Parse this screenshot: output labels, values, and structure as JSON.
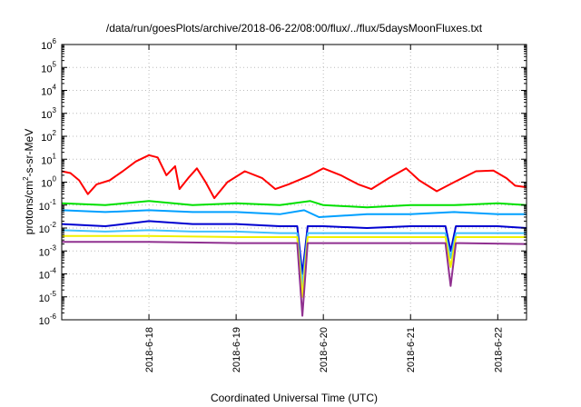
{
  "chart_data": {
    "type": "line",
    "title": "/data/run/goesPlots/archive/2018-06-22/08:00/flux/../flux/5daysMoonFluxes.txt",
    "xlabel": "Coordinated Universal Time (UTC)",
    "ylabel": {
      "pre": "protons/cm",
      "sup": "2",
      "post": "-s-sr-MeV"
    },
    "yscale": "log",
    "ylim_exponents": [
      -6,
      6
    ],
    "y_tick_exponents": [
      -6,
      -5,
      -4,
      -3,
      -2,
      -1,
      0,
      1,
      2,
      3,
      4,
      5,
      6
    ],
    "y_tick_base": "10",
    "xlim_days": [
      0,
      5.33
    ],
    "x_ticks": [
      {
        "label": "2018-6-18",
        "day": 1
      },
      {
        "label": "2018-6-19",
        "day": 2
      },
      {
        "label": "2018-6-20",
        "day": 3
      },
      {
        "label": "2018-6-21",
        "day": 4
      },
      {
        "label": "2018-6-22",
        "day": 5
      }
    ],
    "grid": true,
    "series": [
      {
        "color": "#ff0000",
        "points": [
          [
            0,
            3
          ],
          [
            0.1,
            2.5
          ],
          [
            0.2,
            1.2
          ],
          [
            0.3,
            0.3
          ],
          [
            0.4,
            0.8
          ],
          [
            0.55,
            1.2
          ],
          [
            0.7,
            3
          ],
          [
            0.85,
            8
          ],
          [
            1.0,
            15
          ],
          [
            1.1,
            12
          ],
          [
            1.2,
            2
          ],
          [
            1.3,
            5
          ],
          [
            1.35,
            0.5
          ],
          [
            1.45,
            1.5
          ],
          [
            1.55,
            4
          ],
          [
            1.65,
            1.0
          ],
          [
            1.75,
            0.2
          ],
          [
            1.9,
            1.0
          ],
          [
            2.1,
            3
          ],
          [
            2.3,
            1.5
          ],
          [
            2.45,
            0.5
          ],
          [
            2.6,
            0.8
          ],
          [
            2.85,
            2
          ],
          [
            3.0,
            4
          ],
          [
            3.2,
            2
          ],
          [
            3.4,
            0.8
          ],
          [
            3.55,
            0.5
          ],
          [
            3.75,
            1.5
          ],
          [
            3.95,
            4
          ],
          [
            4.1,
            1.2
          ],
          [
            4.3,
            0.4
          ],
          [
            4.5,
            1.0
          ],
          [
            4.75,
            3
          ],
          [
            4.95,
            3.2
          ],
          [
            5.1,
            1.5
          ],
          [
            5.2,
            0.7
          ],
          [
            5.33,
            0.6
          ]
        ]
      },
      {
        "color": "#00e000",
        "points": [
          [
            0,
            0.12
          ],
          [
            0.5,
            0.1
          ],
          [
            1.0,
            0.15
          ],
          [
            1.5,
            0.1
          ],
          [
            2.0,
            0.12
          ],
          [
            2.5,
            0.1
          ],
          [
            2.85,
            0.15
          ],
          [
            3.0,
            0.1
          ],
          [
            3.5,
            0.08
          ],
          [
            4.0,
            0.1
          ],
          [
            4.5,
            0.1
          ],
          [
            5.0,
            0.12
          ],
          [
            5.33,
            0.1
          ]
        ]
      },
      {
        "color": "#00a0ff",
        "points": [
          [
            0,
            0.06
          ],
          [
            0.5,
            0.05
          ],
          [
            1.0,
            0.06
          ],
          [
            1.5,
            0.05
          ],
          [
            2.0,
            0.05
          ],
          [
            2.5,
            0.04
          ],
          [
            2.78,
            0.06
          ],
          [
            2.95,
            0.03
          ],
          [
            3.5,
            0.04
          ],
          [
            4.0,
            0.04
          ],
          [
            4.5,
            0.05
          ],
          [
            5.0,
            0.04
          ],
          [
            5.33,
            0.04
          ]
        ]
      },
      {
        "color": "#0000d0",
        "points": [
          [
            0,
            0.015
          ],
          [
            0.5,
            0.012
          ],
          [
            1.0,
            0.02
          ],
          [
            1.5,
            0.015
          ],
          [
            2.0,
            0.015
          ],
          [
            2.5,
            0.012
          ],
          [
            2.7,
            0.012
          ],
          [
            2.76,
            0.0001
          ],
          [
            2.82,
            0.012
          ],
          [
            3.0,
            0.012
          ],
          [
            3.5,
            0.01
          ],
          [
            4.0,
            0.012
          ],
          [
            4.4,
            0.012
          ],
          [
            4.46,
            0.001
          ],
          [
            4.52,
            0.012
          ],
          [
            5.0,
            0.012
          ],
          [
            5.33,
            0.01
          ]
        ]
      },
      {
        "color": "#40c0ff",
        "points": [
          [
            0,
            0.008
          ],
          [
            0.5,
            0.007
          ],
          [
            1.0,
            0.008
          ],
          [
            1.5,
            0.007
          ],
          [
            2.0,
            0.007
          ],
          [
            2.5,
            0.006
          ],
          [
            2.7,
            0.006
          ],
          [
            2.76,
            3e-05
          ],
          [
            2.82,
            0.006
          ],
          [
            3.5,
            0.006
          ],
          [
            4.0,
            0.006
          ],
          [
            4.4,
            0.006
          ],
          [
            4.46,
            0.0005
          ],
          [
            4.52,
            0.006
          ],
          [
            5.0,
            0.006
          ],
          [
            5.33,
            0.006
          ]
        ]
      },
      {
        "color": "#f0f000",
        "points": [
          [
            0,
            0.0045
          ],
          [
            1.0,
            0.0045
          ],
          [
            2.0,
            0.004
          ],
          [
            2.7,
            0.004
          ],
          [
            2.76,
            1e-05
          ],
          [
            2.82,
            0.004
          ],
          [
            3.5,
            0.004
          ],
          [
            4.4,
            0.004
          ],
          [
            4.46,
            0.0002
          ],
          [
            4.52,
            0.004
          ],
          [
            5.33,
            0.004
          ]
        ]
      },
      {
        "color": "#903090",
        "points": [
          [
            0,
            0.0025
          ],
          [
            1.0,
            0.0025
          ],
          [
            2.0,
            0.0022
          ],
          [
            2.7,
            0.0022
          ],
          [
            2.76,
            1.5e-06
          ],
          [
            2.82,
            0.0022
          ],
          [
            3.5,
            0.0022
          ],
          [
            4.4,
            0.0022
          ],
          [
            4.46,
            3e-05
          ],
          [
            4.52,
            0.0022
          ],
          [
            5.33,
            0.002
          ]
        ]
      }
    ]
  }
}
